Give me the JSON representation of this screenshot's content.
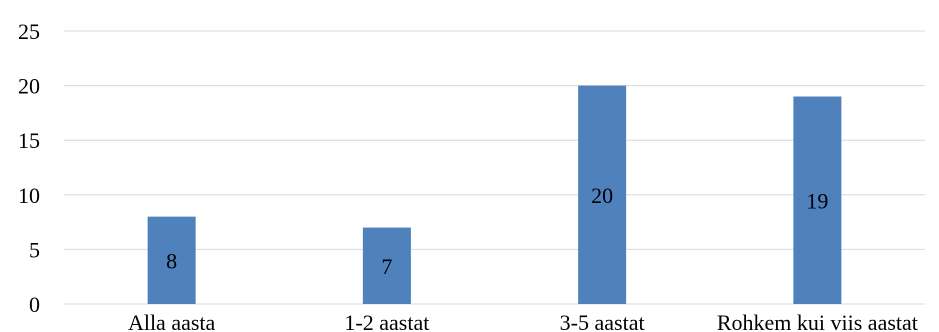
{
  "chart_data": {
    "type": "bar",
    "categories": [
      "Alla aasta",
      "1-2 aastat",
      "3-5 aastat",
      "Rohkem kui viis aastat"
    ],
    "values": [
      8,
      7,
      20,
      19
    ],
    "title": "",
    "xlabel": "",
    "ylabel": "",
    "ylim": [
      0,
      25
    ],
    "yticks": [
      "0",
      "5",
      "10",
      "15",
      "20",
      "25"
    ],
    "grid": true,
    "legend": "none",
    "data_labels": true,
    "bar_color": "#4f81bd",
    "grid_color": "#d9d9d9"
  }
}
